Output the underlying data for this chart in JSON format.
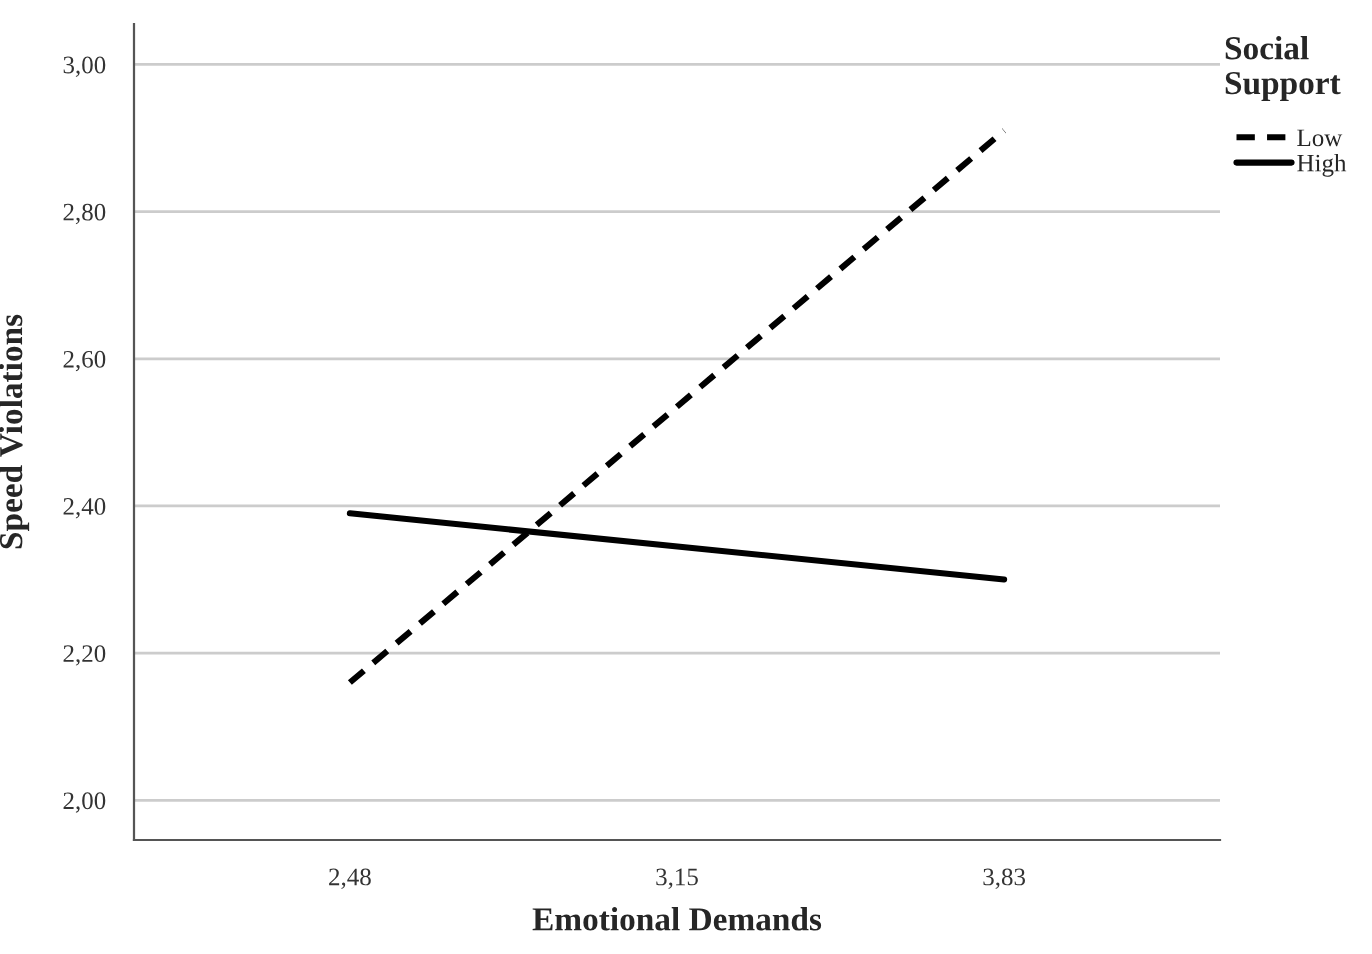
{
  "chart_data": {
    "type": "line",
    "xlabel": "Emotional Demands",
    "ylabel": "Speed Violations",
    "legend_title": "Social Support",
    "categories": [
      "2,48",
      "3,15",
      "3,83"
    ],
    "series": [
      {
        "name": "Low",
        "color": "#000000",
        "line_style": "dashed",
        "values": [
          2.16,
          null,
          2.91
        ]
      },
      {
        "name": "High",
        "color": "#000000",
        "line_style": "solid",
        "values": [
          2.39,
          null,
          2.3
        ]
      }
    ],
    "ylim": [
      1.946,
      3.055
    ],
    "yticks": [
      {
        "value": 2.0,
        "label": "2,00"
      },
      {
        "value": 2.2,
        "label": "2,20"
      },
      {
        "value": 2.4,
        "label": "2,40"
      },
      {
        "value": 2.6,
        "label": "2,60"
      },
      {
        "value": 2.8,
        "label": "2,80"
      },
      {
        "value": 3.0,
        "label": "3,00"
      }
    ],
    "grid": "y",
    "legend": "top right",
    "marker": "none"
  }
}
